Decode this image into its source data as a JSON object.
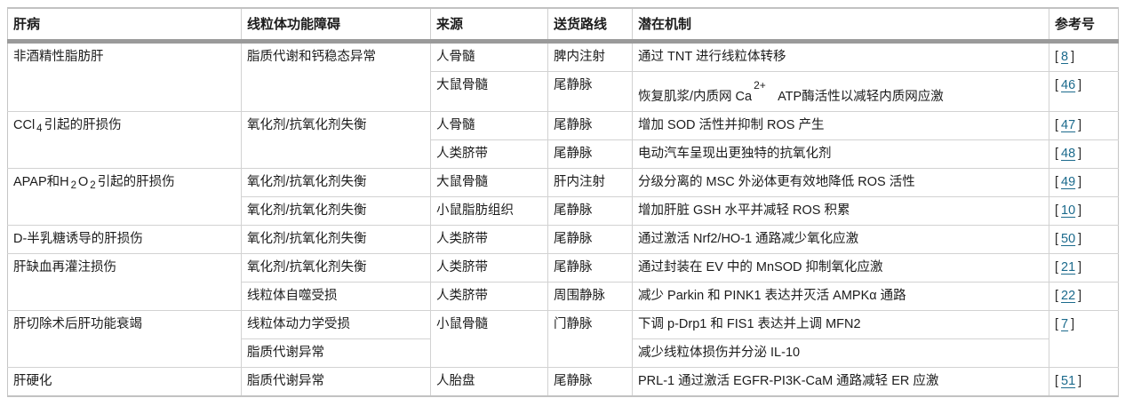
{
  "table": {
    "headers": [
      {
        "label": "肝病"
      },
      {
        "label": "线粒体功能障碍"
      },
      {
        "label": "来源"
      },
      {
        "label": "送货路线"
      },
      {
        "label": "潜在机制"
      },
      {
        "label": "参考号"
      }
    ],
    "rows": [
      [
        {
          "text": "非酒精性脂肪肝",
          "rowspan": 2
        },
        {
          "text": "脂质代谢和钙稳态异常",
          "rowspan": 2
        },
        {
          "text": "人骨髓"
        },
        {
          "text": "脾内注射"
        },
        {
          "text": "通过 TNT 进行线粒体转移"
        },
        {
          "ref": "8"
        }
      ],
      [
        {
          "text": "大鼠骨髓"
        },
        {
          "text": "尾静脉"
        },
        {
          "text": "恢复肌浆/内质网 Ca^2+^   ATP酶活性以减轻内质网应激"
        },
        {
          "ref": "46"
        }
      ],
      [
        {
          "text": "CCl~4~引起的肝损伤",
          "rowspan": 2
        },
        {
          "text": "氧化剂/抗氧化剂失衡",
          "rowspan": 2
        },
        {
          "text": "人骨髓"
        },
        {
          "text": "尾静脉"
        },
        {
          "text": "增加 SOD 活性并抑制 ROS 产生"
        },
        {
          "ref": "47"
        }
      ],
      [
        {
          "text": "人类脐带"
        },
        {
          "text": "尾静脉"
        },
        {
          "text": "电动汽车呈现出更独特的抗氧化剂"
        },
        {
          "ref": "48"
        }
      ],
      [
        {
          "text": "APAP和H~2~O~2~引起的肝损伤",
          "rowspan": 2
        },
        {
          "text": "氧化剂/抗氧化剂失衡"
        },
        {
          "text": "大鼠骨髓"
        },
        {
          "text": "肝内注射"
        },
        {
          "text": "分级分离的 MSC 外泌体更有效地降低 ROS 活性"
        },
        {
          "ref": "49"
        }
      ],
      [
        {
          "text": "氧化剂/抗氧化剂失衡"
        },
        {
          "text": "小鼠脂肪组织"
        },
        {
          "text": "尾静脉"
        },
        {
          "text": "增加肝脏 GSH 水平并减轻 ROS 积累"
        },
        {
          "ref": "10"
        }
      ],
      [
        {
          "text": "D-半乳糖诱导的肝损伤"
        },
        {
          "text": "氧化剂/抗氧化剂失衡"
        },
        {
          "text": "人类脐带"
        },
        {
          "text": "尾静脉"
        },
        {
          "text": "通过激活 Nrf2/HO-1 通路减少氧化应激"
        },
        {
          "ref": "50"
        }
      ],
      [
        {
          "text": "肝缺血再灌注损伤",
          "rowspan": 2
        },
        {
          "text": "氧化剂/抗氧化剂失衡"
        },
        {
          "text": "人类脐带"
        },
        {
          "text": "尾静脉"
        },
        {
          "text": "通过封装在 EV 中的 MnSOD 抑制氧化应激"
        },
        {
          "ref": "21"
        }
      ],
      [
        {
          "text": "线粒体自噬受损"
        },
        {
          "text": "人类脐带"
        },
        {
          "text": "周围静脉"
        },
        {
          "text": "减少 Parkin 和 PINK1 表达并灭活 AMPKα 通路"
        },
        {
          "ref": "22"
        }
      ],
      [
        {
          "text": "肝切除术后肝功能衰竭",
          "rowspan": 2
        },
        {
          "text": "线粒体动力学受损"
        },
        {
          "text": "小鼠骨髓",
          "rowspan": 2
        },
        {
          "text": "门静脉",
          "rowspan": 2
        },
        {
          "text": "下调 p-Drp1 和 FIS1 表达并上调 MFN2"
        },
        {
          "ref": "7",
          "rowspan": 2
        }
      ],
      [
        {
          "text": "脂质代谢异常"
        },
        {
          "text": "减少线粒体损伤并分泌 IL-10"
        }
      ],
      [
        {
          "text": "肝硬化"
        },
        {
          "text": "脂质代谢异常"
        },
        {
          "text": "人胎盘"
        },
        {
          "text": "尾静脉"
        },
        {
          "text": "PRL-1 通过激活 EGFR-PI3K-CaM 通路减轻 ER 应激"
        },
        {
          "ref": "51"
        }
      ]
    ]
  },
  "colors": {
    "reference_link": "#1b6a8c",
    "header_separator": "#9a9a9a",
    "grid_line": "#d2d2d2",
    "text": "#1c1c1c"
  }
}
